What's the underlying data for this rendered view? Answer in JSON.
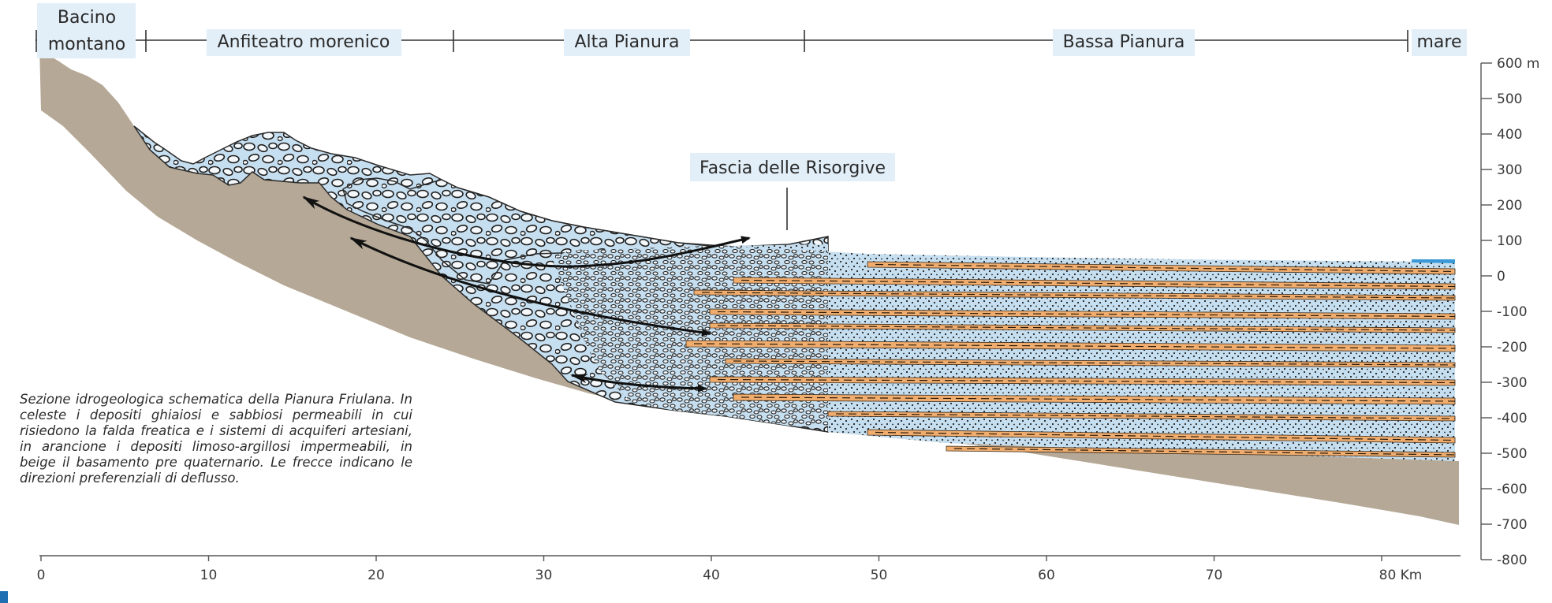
{
  "zones": [
    {
      "id": "bacino",
      "label_line1": "Bacino",
      "label_line2": "montano"
    },
    {
      "id": "anfiteatro",
      "label": "Anfiteatro morenico"
    },
    {
      "id": "alta",
      "label": "Alta Pianura"
    },
    {
      "id": "bassa",
      "label": "Bassa Pianura"
    },
    {
      "id": "mare",
      "label": "mare"
    }
  ],
  "annotation": "Fascia delle Risorgive",
  "elevation_axis": {
    "unit": "m",
    "ticks": [
      600,
      500,
      400,
      300,
      200,
      100,
      0,
      -100,
      -200,
      -300,
      -400,
      -500,
      -600,
      -700,
      -800
    ],
    "tick_labels": [
      "600 m",
      "500",
      "400",
      "300",
      "200",
      "100",
      "0",
      "-100",
      "-200",
      "-300",
      "-400",
      "-500",
      "-600",
      "-700",
      "-800"
    ]
  },
  "distance_axis": {
    "unit": "Km",
    "ticks": [
      0,
      10,
      20,
      30,
      40,
      50,
      60,
      70,
      80
    ],
    "tick_labels": [
      "0",
      "10",
      "20",
      "30",
      "40",
      "50",
      "60",
      "70",
      "80 Km"
    ]
  },
  "caption": "Sezione idrogeologica schematica della Pianura Friulana. In celeste i depositi ghiaiosi e sabbiosi permeabili in cui risiedono la falda freatica e i sistemi di acquiferi artesiani, in arancione i depositi limoso-argillosi impermeabili, in beige il basamento pre quaternario. Le frecce indicano le direzioni preferenziali di deflusso.",
  "colors": {
    "basement": "#b5a896",
    "permeable": "#c6dff0",
    "impermeable": "#f0ad6e",
    "sea": "#3a9ad8",
    "label_bg": "#e3eff8",
    "gravel_stroke": "#1f1f1f"
  },
  "legend_terms": [
    "depositi ghiaiosi e sabbiosi permeabili",
    "depositi limoso-argillosi impermeabili",
    "basamento pre quaternario"
  ]
}
